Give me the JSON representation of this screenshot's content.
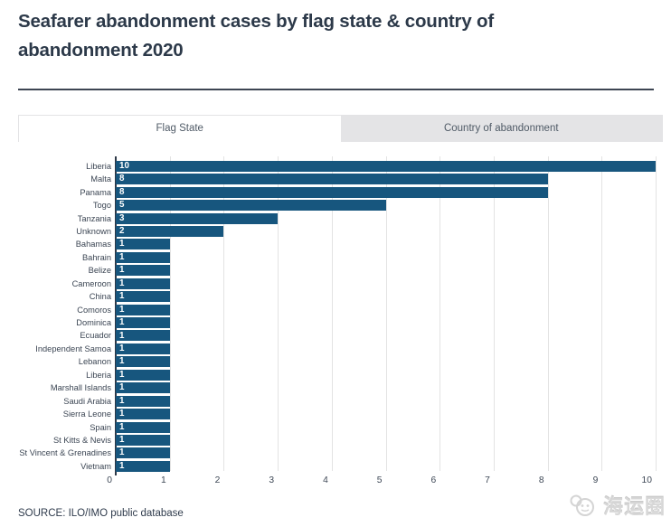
{
  "header": {
    "title": "Seafarer abandonment cases by flag state & country of abandonment 2020"
  },
  "tabs": [
    {
      "label": "Flag State",
      "active": true
    },
    {
      "label": "Country of abandonment",
      "active": false
    }
  ],
  "chart_data": {
    "type": "bar",
    "orientation": "horizontal",
    "title": "Seafarer abandonment cases by flag state & country of abandonment 2020",
    "categories": [
      "Liberia",
      "Malta",
      "Panama",
      "Togo",
      "Tanzania",
      "Unknown",
      "Bahamas",
      "Bahrain",
      "Belize",
      "Cameroon",
      "China",
      "Comoros",
      "Dominica",
      "Ecuador",
      "Independent Samoa",
      "Lebanon",
      "Liberia",
      "Marshall Islands",
      "Saudi Arabia",
      "Sierra Leone",
      "Spain",
      "St Kitts & Nevis",
      "St Vincent & Grenadines",
      "Vietnam"
    ],
    "values": [
      10,
      8,
      8,
      5,
      3,
      2,
      1,
      1,
      1,
      1,
      1,
      1,
      1,
      1,
      1,
      1,
      1,
      1,
      1,
      1,
      1,
      1,
      1,
      1
    ],
    "xlabel": "",
    "ylabel": "",
    "xlim": [
      0,
      10
    ],
    "x_ticks": [
      0,
      1,
      2,
      3,
      4,
      5,
      6,
      7,
      8,
      9,
      10
    ],
    "grid": "vertical",
    "legend": "none",
    "value_labels_shown": true,
    "bar_color": "#17567E",
    "gridline_color": "#e3e3e3",
    "axis_color": "#2e3947"
  },
  "footer": {
    "source": "SOURCE: ILO/IMO public database"
  },
  "watermark": {
    "text": "海运圈"
  }
}
